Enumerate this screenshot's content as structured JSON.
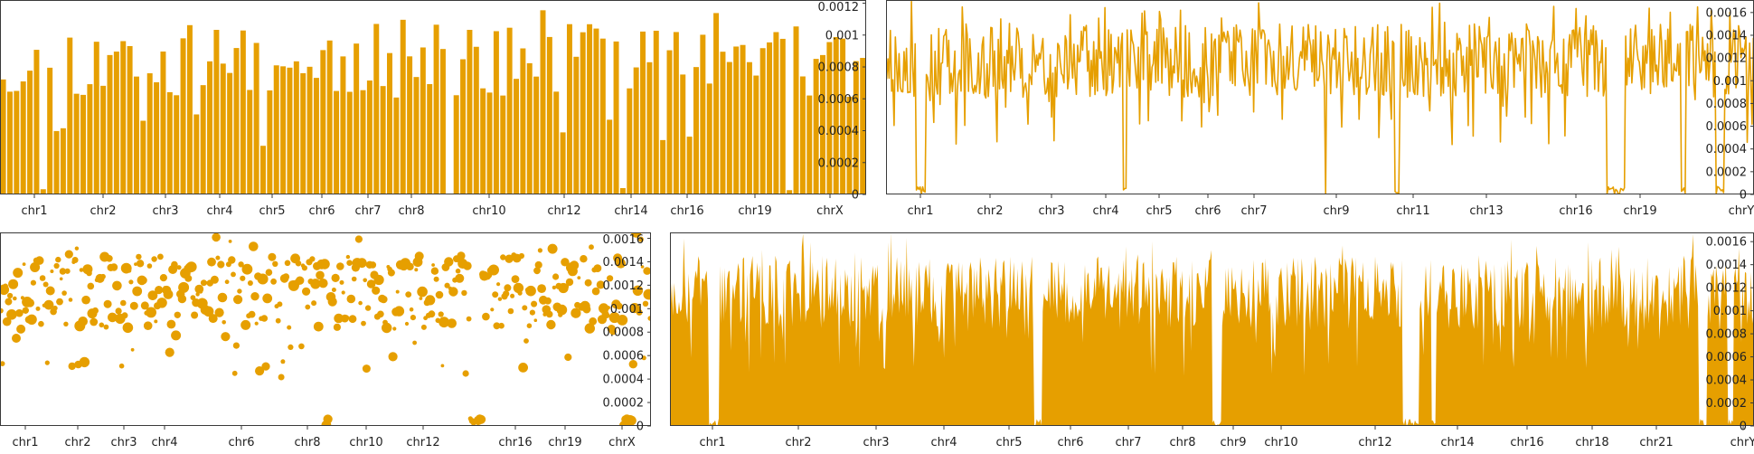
{
  "colors": {
    "series": "#e69f00",
    "frame": "#3a3a3a",
    "text": "#222222"
  },
  "chart_data": [
    {
      "type": "bar",
      "title": "",
      "xlabel": "",
      "ylabel": "",
      "ylim": [
        0,
        0.00122
      ],
      "y_ticks": [
        "0",
        "0.0002",
        "0.0004",
        "0.0006",
        "0.0008",
        "0.001",
        "0.0012"
      ],
      "x_labels": [
        "chr1",
        "chr2",
        "chr3",
        "chr4",
        "chr5",
        "chr6",
        "chr7",
        "chr8",
        "chr10",
        "chr12",
        "chr14",
        "chr16",
        "chr19",
        "chrX"
      ],
      "n_points": 130
    },
    {
      "type": "line",
      "title": "",
      "xlabel": "",
      "ylabel": "",
      "ylim": [
        0,
        0.00171
      ],
      "y_ticks": [
        "0",
        "0.0002",
        "0.0004",
        "0.0006",
        "0.0008",
        "0.001",
        "0.0012",
        "0.0014",
        "0.0016"
      ],
      "x_labels": [
        "chr1",
        "chr2",
        "chr3",
        "chr4",
        "chr5",
        "chr6",
        "chr7",
        "chr9",
        "chr11",
        "chr13",
        "chr16",
        "chr19",
        "chrY"
      ],
      "n_points": 700
    },
    {
      "type": "scatter",
      "title": "",
      "xlabel": "",
      "ylabel": "",
      "ylim": [
        0,
        0.00165
      ],
      "y_ticks": [
        "0",
        "0.0002",
        "0.0004",
        "0.0006",
        "0.0008",
        "0.001",
        "0.0012",
        "0.0014",
        "0.0016"
      ],
      "x_labels": [
        "chr1",
        "chr2",
        "chr3",
        "chr4",
        "chr6",
        "chr8",
        "chr10",
        "chr12",
        "chr16",
        "chr19",
        "chrX"
      ],
      "n_points": 420
    },
    {
      "type": "area",
      "title": "",
      "xlabel": "",
      "ylabel": "",
      "ylim": [
        0,
        0.00168
      ],
      "y_ticks": [
        "0",
        "0.0002",
        "0.0004",
        "0.0006",
        "0.0008",
        "0.001",
        "0.0012",
        "0.0014",
        "0.0016"
      ],
      "x_labels": [
        "chr1",
        "chr2",
        "chr3",
        "chr4",
        "chr5",
        "chr6",
        "chr7",
        "chr8",
        "chr9",
        "chr10",
        "chr12",
        "chr14",
        "chr16",
        "chr18",
        "chr21",
        "chrY"
      ],
      "n_points": 900
    }
  ]
}
